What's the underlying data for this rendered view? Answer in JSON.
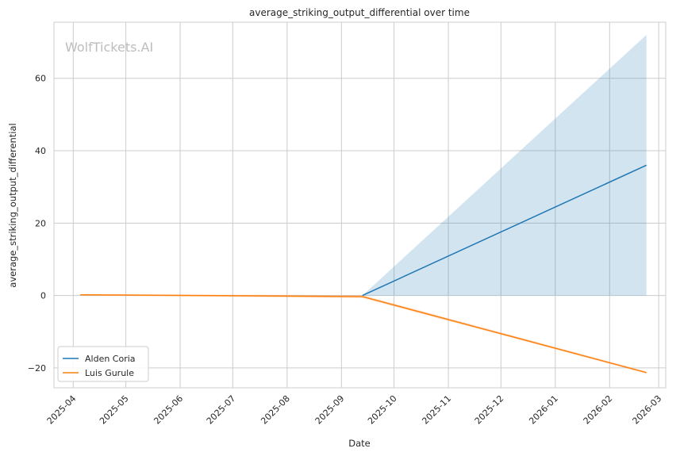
{
  "chart_data": {
    "type": "line",
    "title": "average_striking_output_differential over time",
    "xlabel": "Date",
    "ylabel": "average_striking_output_differential",
    "watermark": "WolfTickets.AI",
    "x_ticks": [
      "2025-04",
      "2025-05",
      "2025-06",
      "2025-07",
      "2025-08",
      "2025-09",
      "2025-10",
      "2025-11",
      "2025-12",
      "2026-01",
      "2026-02",
      "2026-03"
    ],
    "y_ticks": [
      -20,
      0,
      20,
      40,
      60
    ],
    "xlim": [
      "2025-03-21",
      "2026-03-05"
    ],
    "ylim": [
      -25.5,
      75.5
    ],
    "grid": true,
    "legend_position": "lower-left",
    "series": [
      {
        "name": "Alden Coria",
        "color": "#1f77b4",
        "points": [
          {
            "x": "2025-09-13",
            "y": 0
          },
          {
            "x": "2026-02-22",
            "y": 36
          }
        ],
        "band": [
          {
            "x": "2025-09-13",
            "low": 0,
            "high": 0
          },
          {
            "x": "2026-02-22",
            "low": 0,
            "high": 72
          }
        ]
      },
      {
        "name": "Luis Gurule",
        "color": "#ff7f0e",
        "points": [
          {
            "x": "2025-04-05",
            "y": 0.2
          },
          {
            "x": "2025-09-13",
            "y": -0.3
          },
          {
            "x": "2026-02-22",
            "y": -21.3
          }
        ],
        "band": [
          {
            "x": "2025-04-05",
            "low": 0.0,
            "high": 0.35
          },
          {
            "x": "2025-09-13",
            "low": -0.7,
            "high": 0.1
          },
          {
            "x": "2026-02-22",
            "low": -21.6,
            "high": -21.0
          }
        ]
      }
    ]
  }
}
